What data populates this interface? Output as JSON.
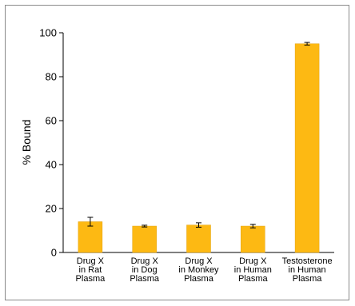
{
  "chart_data": {
    "type": "bar",
    "categories": [
      [
        "Drug X",
        "in Rat",
        "Plasma"
      ],
      [
        "Drug X",
        "in Dog",
        "Plasma"
      ],
      [
        "Drug X",
        "in Monkey",
        "Plasma"
      ],
      [
        "Drug X",
        "in Human",
        "Plasma"
      ],
      [
        "Testosterone",
        "in Human",
        "Plasma"
      ]
    ],
    "values": [
      14,
      12,
      12.5,
      12,
      95
    ],
    "errors": [
      2,
      0.4,
      1,
      0.8,
      0.6
    ],
    "title": "",
    "xlabel": "",
    "ylabel": "% Bound",
    "ylim": [
      0,
      100
    ],
    "yticks": [
      0,
      20,
      40,
      60,
      80,
      100
    ],
    "grid": false,
    "colors": {
      "bar": "#FDB913",
      "bar_edge": "#E3A20C",
      "error_bar": "#000000",
      "axis": "#000000",
      "frame": "#8a8a8a"
    }
  }
}
